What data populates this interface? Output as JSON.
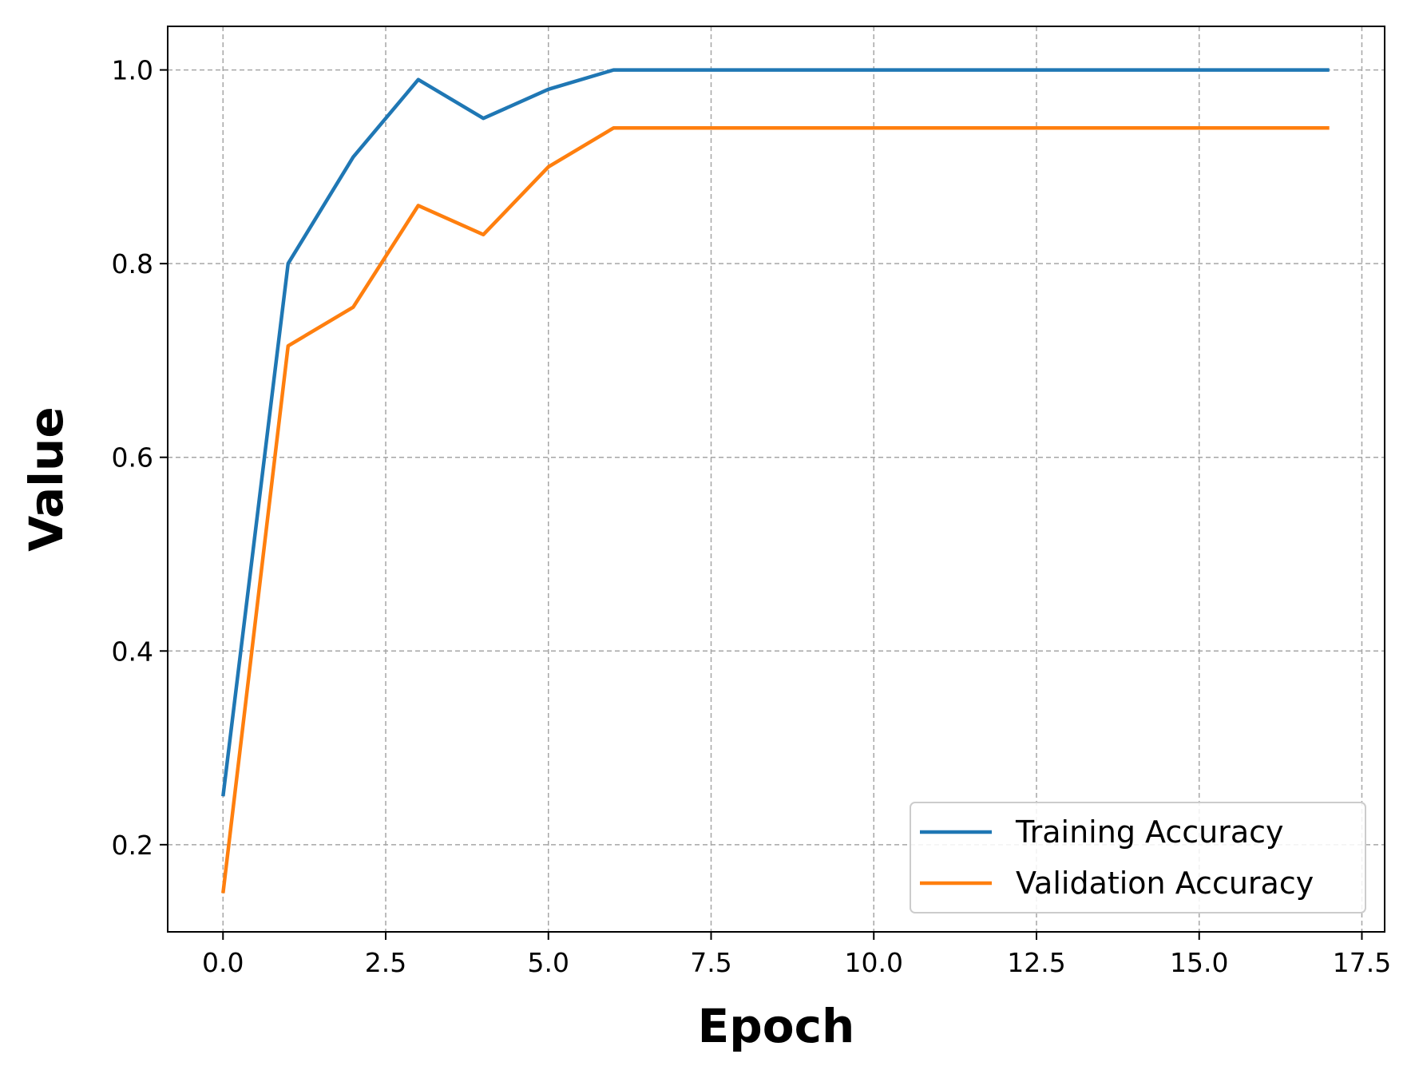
{
  "chart_data": {
    "type": "line",
    "title": "",
    "xlabel": "Epoch",
    "ylabel": "Value",
    "xlim": [
      -0.85,
      17.85
    ],
    "ylim": [
      0.11,
      1.045
    ],
    "xticks": [
      0.0,
      2.5,
      5.0,
      7.5,
      10.0,
      12.5,
      15.0,
      17.5
    ],
    "xtick_labels": [
      "0.0",
      "2.5",
      "5.0",
      "7.5",
      "10.0",
      "12.5",
      "15.0",
      "17.5"
    ],
    "yticks": [
      0.2,
      0.4,
      0.6,
      0.8,
      1.0
    ],
    "ytick_labels": [
      "0.2",
      "0.4",
      "0.6",
      "0.8",
      "1.0"
    ],
    "grid": true,
    "legend_position": "lower-right",
    "x": [
      0,
      1,
      2,
      3,
      4,
      5,
      6,
      7,
      8,
      9,
      10,
      11,
      12,
      13,
      14,
      15,
      16,
      17
    ],
    "series": [
      {
        "name": "Training Accuracy",
        "color": "#1f77b4",
        "values": [
          0.25,
          0.8,
          0.91,
          0.99,
          0.95,
          0.98,
          1.0,
          1.0,
          1.0,
          1.0,
          1.0,
          1.0,
          1.0,
          1.0,
          1.0,
          1.0,
          1.0,
          1.0
        ]
      },
      {
        "name": "Validation Accuracy",
        "color": "#ff7f0e",
        "values": [
          0.15,
          0.715,
          0.755,
          0.86,
          0.83,
          0.9,
          0.94,
          0.94,
          0.94,
          0.94,
          0.94,
          0.94,
          0.94,
          0.94,
          0.94,
          0.94,
          0.94,
          0.94
        ]
      }
    ]
  }
}
